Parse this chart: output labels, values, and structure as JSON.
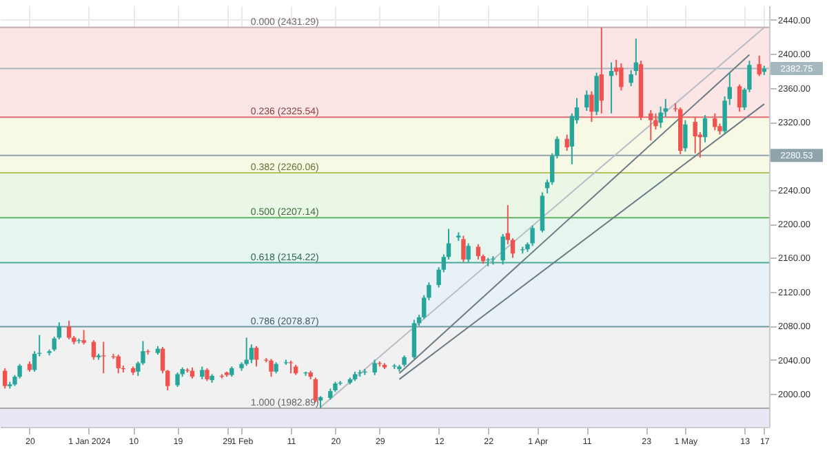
{
  "chart_data": {
    "type": "candlestick",
    "x": [
      "2023-12-15",
      "2023-12-16",
      "2023-12-17",
      "2023-12-18",
      "2023-12-20",
      "2023-12-21",
      "2023-12-22",
      "2023-12-24",
      "2023-12-25",
      "2023-12-26",
      "2023-12-28",
      "2023-12-29",
      "2023-12-30",
      "2023-12-31",
      "2024-01-02",
      "2024-01-03",
      "2024-01-04",
      "2024-01-06",
      "2024-01-07",
      "2024-01-08",
      "2024-01-10",
      "2024-01-11",
      "2024-01-12",
      "2024-01-13",
      "2024-01-15",
      "2024-01-16",
      "2024-01-17",
      "2024-01-19",
      "2024-01-20",
      "2024-01-21",
      "2024-01-22",
      "2024-01-24",
      "2024-01-25",
      "2024-01-26",
      "2024-01-28",
      "2024-01-29",
      "2024-01-30",
      "2024-02-01",
      "2024-02-02",
      "2024-02-03",
      "2024-02-04",
      "2024-02-06",
      "2024-02-07",
      "2024-02-08",
      "2024-02-10",
      "2024-02-11",
      "2024-02-12",
      "2024-02-14",
      "2024-02-15",
      "2024-02-16",
      "2024-02-17",
      "2024-02-19",
      "2024-02-20",
      "2024-02-21",
      "2024-02-23",
      "2024-02-24",
      "2024-02-25",
      "2024-02-26",
      "2024-02-28",
      "2024-02-29",
      "2024-03-01",
      "2024-03-03",
      "2024-03-04",
      "2024-03-05",
      "2024-03-07",
      "2024-03-08",
      "2024-03-09",
      "2024-03-10",
      "2024-03-12",
      "2024-03-13",
      "2024-03-14",
      "2024-03-16",
      "2024-03-17",
      "2024-03-18",
      "2024-03-20",
      "2024-03-21",
      "2024-03-22",
      "2024-03-23",
      "2024-03-25",
      "2024-03-26",
      "2024-03-27",
      "2024-03-29",
      "2024-03-30",
      "2024-03-31",
      "2024-04-02",
      "2024-04-03",
      "2024-04-04",
      "2024-04-05",
      "2024-04-07",
      "2024-04-08",
      "2024-04-09",
      "2024-04-11",
      "2024-04-12",
      "2024-04-13",
      "2024-04-14",
      "2024-04-16",
      "2024-04-17",
      "2024-04-18",
      "2024-04-20",
      "2024-04-21",
      "2024-04-22",
      "2024-04-24",
      "2024-04-25",
      "2024-04-26",
      "2024-04-27",
      "2024-04-29",
      "2024-04-30",
      "2024-05-01",
      "2024-05-03",
      "2024-05-04",
      "2024-05-05",
      "2024-05-07",
      "2024-05-08",
      "2024-05-09",
      "2024-05-10",
      "2024-05-12",
      "2024-05-13",
      "2024-05-14",
      "2024-05-16",
      "2024-05-17"
    ],
    "ohlc": [
      [
        2027,
        2030,
        2006,
        2009
      ],
      [
        2009,
        2014,
        2006,
        2011
      ],
      [
        2011,
        2022,
        2009,
        2020
      ],
      [
        2020,
        2035,
        2018,
        2033
      ],
      [
        2035,
        2038,
        2026,
        2028
      ],
      [
        2028,
        2050,
        2026,
        2047
      ],
      [
        2047,
        2069,
        2044,
        2048
      ],
      [
        2048,
        2052,
        2045,
        2050
      ],
      [
        2052,
        2067,
        2050,
        2065
      ],
      [
        2066,
        2084,
        2064,
        2079
      ],
      [
        2079,
        2086,
        2064,
        2066
      ],
      [
        2066,
        2068,
        2058,
        2061
      ],
      [
        2062,
        2065,
        2059,
        2063
      ],
      [
        2063,
        2075,
        2058,
        2060
      ],
      [
        2061,
        2063,
        2040,
        2043
      ],
      [
        2043,
        2047,
        2040,
        2045
      ],
      [
        2045,
        2061,
        2024,
        2044
      ],
      [
        2044,
        2047,
        2041,
        2043
      ],
      [
        2044,
        2046,
        2024,
        2030
      ],
      [
        2030,
        2033,
        2025,
        2029
      ],
      [
        2030,
        2032,
        2022,
        2025
      ],
      [
        2026,
        2038,
        2021,
        2036
      ],
      [
        2036,
        2062,
        2034,
        2050
      ],
      [
        2050,
        2052,
        2046,
        2049
      ],
      [
        2048,
        2056,
        2046,
        2053
      ],
      [
        2053,
        2055,
        2024,
        2027
      ],
      [
        2027,
        2028,
        2004,
        2009
      ],
      [
        2010,
        2025,
        2008,
        2023
      ],
      [
        2023,
        2031,
        2020,
        2029
      ],
      [
        2028,
        2030,
        2025,
        2027
      ],
      [
        2027,
        2031,
        2018,
        2020
      ],
      [
        2020,
        2032,
        2017,
        2028
      ],
      [
        2028,
        2030,
        2015,
        2017
      ],
      [
        2016,
        2023,
        2013,
        2021
      ],
      [
        2021,
        2023,
        2018,
        2020
      ],
      [
        2025,
        2026,
        2020,
        2022
      ],
      [
        2022,
        2032,
        2020,
        2030
      ],
      [
        2030,
        2037,
        2027,
        2035
      ],
      [
        2035,
        2066,
        2033,
        2040
      ],
      [
        2040,
        2058,
        2036,
        2054
      ],
      [
        2054,
        2056,
        2032,
        2040
      ],
      [
        2040,
        2042,
        2037,
        2039
      ],
      [
        2039,
        2041,
        2020,
        2026
      ],
      [
        2026,
        2037,
        2024,
        2035
      ],
      [
        2036,
        2040,
        2034,
        2037
      ],
      [
        2037,
        2039,
        2024,
        2036
      ],
      [
        2032,
        2034,
        2022,
        2024
      ],
      [
        2024,
        2026,
        2021,
        2025
      ],
      [
        2025,
        2027,
        2017,
        2020
      ],
      [
        2017,
        2019,
        1990,
        1992
      ],
      [
        1992,
        1997,
        1983,
        1996
      ],
      [
        1995,
        2006,
        1993,
        2003
      ],
      [
        2004,
        2014,
        2002,
        2012
      ],
      [
        2012,
        2015,
        2010,
        2013
      ],
      [
        2013,
        2019,
        2011,
        2017
      ],
      [
        2017,
        2026,
        2015,
        2023
      ],
      [
        2024,
        2028,
        2020,
        2025
      ],
      [
        2025,
        2029,
        2022,
        2026
      ],
      [
        2025,
        2040,
        2022,
        2036
      ],
      [
        2036,
        2038,
        2032,
        2035
      ],
      [
        2034,
        2036,
        2029,
        2031
      ],
      [
        2032,
        2035,
        2029,
        2033
      ],
      [
        2029,
        2034,
        2026,
        2032
      ],
      [
        2034,
        2045,
        2032,
        2043
      ],
      [
        2043,
        2087,
        2041,
        2083
      ],
      [
        2083,
        2093,
        2080,
        2090
      ],
      [
        2090,
        2116,
        2088,
        2113
      ],
      [
        2113,
        2131,
        2110,
        2128
      ],
      [
        2128,
        2149,
        2125,
        2146
      ],
      [
        2146,
        2164,
        2143,
        2161
      ],
      [
        2161,
        2194,
        2158,
        2177
      ],
      [
        2184,
        2190,
        2180,
        2186
      ],
      [
        2182,
        2186,
        2155,
        2158
      ],
      [
        2158,
        2177,
        2155,
        2174
      ],
      [
        2173,
        2176,
        2158,
        2162
      ],
      [
        2162,
        2164,
        2153,
        2156
      ],
      [
        2157,
        2160,
        2150,
        2158
      ],
      [
        2158,
        2162,
        2152,
        2159
      ],
      [
        2157,
        2188,
        2152,
        2185
      ],
      [
        2189,
        2222,
        2176,
        2181
      ],
      [
        2181,
        2183,
        2160,
        2165
      ],
      [
        2169,
        2173,
        2165,
        2170
      ],
      [
        2170,
        2178,
        2167,
        2176
      ],
      [
        2177,
        2198,
        2174,
        2195
      ],
      [
        2192,
        2237,
        2190,
        2233
      ],
      [
        2242,
        2252,
        2236,
        2249
      ],
      [
        2249,
        2283,
        2246,
        2280
      ],
      [
        2280,
        2303,
        2277,
        2300
      ],
      [
        2300,
        2305,
        2286,
        2290
      ],
      [
        2291,
        2330,
        2270,
        2327
      ],
      [
        2322,
        2348,
        2318,
        2337
      ],
      [
        2337,
        2357,
        2333,
        2352
      ],
      [
        2352,
        2356,
        2320,
        2332
      ],
      [
        2332,
        2378,
        2328,
        2374
      ],
      [
        2376,
        2431,
        2330,
        2345
      ],
      [
        2374,
        2390,
        2330,
        2380
      ],
      [
        2384,
        2393,
        2375,
        2379
      ],
      [
        2384,
        2389,
        2357,
        2361
      ],
      [
        2366,
        2381,
        2362,
        2376
      ],
      [
        2380,
        2418,
        2375,
        2390
      ],
      [
        2388,
        2392,
        2322,
        2325
      ],
      [
        2330,
        2334,
        2298,
        2322
      ],
      [
        2322,
        2330,
        2311,
        2315
      ],
      [
        2319,
        2338,
        2313,
        2331
      ],
      [
        2332,
        2347,
        2326,
        2336
      ],
      [
        2336,
        2342,
        2332,
        2335
      ],
      [
        2335,
        2337,
        2282,
        2286
      ],
      [
        2289,
        2322,
        2285,
        2317
      ],
      [
        2320,
        2325,
        2283,
        2303
      ],
      [
        2305,
        2308,
        2278,
        2302
      ],
      [
        2302,
        2328,
        2296,
        2324
      ],
      [
        2324,
        2330,
        2310,
        2314
      ],
      [
        2315,
        2318,
        2305,
        2309
      ],
      [
        2309,
        2350,
        2306,
        2345
      ],
      [
        2347,
        2378,
        2340,
        2361
      ],
      [
        2362,
        2364,
        2332,
        2337
      ],
      [
        2337,
        2360,
        2334,
        2358
      ],
      [
        2358,
        2392,
        2355,
        2387
      ],
      [
        2388,
        2398,
        2374,
        2376
      ],
      [
        2379,
        2386,
        2375,
        2382.75
      ]
    ],
    "colors": [
      "#ef5350",
      "#26a69a",
      "#26a69a",
      "#26a69a",
      "#ef5350",
      "#26a69a",
      "#26a69a",
      "#26a69a",
      "#26a69a",
      "#26a69a",
      "#ef5350",
      "#ef5350",
      "#26a69a",
      "#ef5350",
      "#ef5350",
      "#26a69a",
      "#ef5350",
      "#ef5350",
      "#ef5350",
      "#ef5350",
      "#ef5350",
      "#26a69a",
      "#26a69a",
      "#ef5350",
      "#26a69a",
      "#ef5350",
      "#ef5350",
      "#26a69a",
      "#26a69a",
      "#ef5350",
      "#ef5350",
      "#26a69a",
      "#ef5350",
      "#26a69a",
      "#ef5350",
      "#ef5350",
      "#26a69a",
      "#26a69a",
      "#26a69a",
      "#26a69a",
      "#ef5350",
      "#ef5350",
      "#ef5350",
      "#26a69a",
      "#26a69a",
      "#ef5350",
      "#ef5350",
      "#26a69a",
      "#ef5350",
      "#ef5350",
      "#26a69a",
      "#26a69a",
      "#26a69a",
      "#26a69a",
      "#26a69a",
      "#26a69a",
      "#26a69a",
      "#26a69a",
      "#26a69a",
      "#ef5350",
      "#ef5350",
      "#26a69a",
      "#26a69a",
      "#26a69a",
      "#26a69a",
      "#26a69a",
      "#26a69a",
      "#26a69a",
      "#26a69a",
      "#26a69a",
      "#26a69a",
      "#26a69a",
      "#ef5350",
      "#26a69a",
      "#ef5350",
      "#ef5350",
      "#26a69a",
      "#26a69a",
      "#26a69a",
      "#ef5350",
      "#ef5350",
      "#26a69a",
      "#26a69a",
      "#26a69a",
      "#26a69a",
      "#26a69a",
      "#26a69a",
      "#26a69a",
      "#ef5350",
      "#26a69a",
      "#26a69a",
      "#26a69a",
      "#ef5350",
      "#26a69a",
      "#ef5350",
      "#26a69a",
      "#ef5350",
      "#ef5350",
      "#26a69a",
      "#26a69a",
      "#ef5350",
      "#ef5350",
      "#ef5350",
      "#26a69a",
      "#26a69a",
      "#ef5350",
      "#ef5350",
      "#26a69a",
      "#ef5350",
      "#ef5350",
      "#26a69a",
      "#ef5350",
      "#ef5350",
      "#26a69a",
      "#26a69a",
      "#ef5350",
      "#26a69a",
      "#26a69a",
      "#ef5350",
      "#26a69a"
    ],
    "series": [
      {
        "type": "line",
        "color": "#b8bcc6",
        "x": [
          "2024-02-17",
          "2024-05-17"
        ],
        "values": [
          1984,
          2431
        ]
      },
      {
        "type": "line",
        "color": "#6b7a85",
        "x": [
          "2024-03-04",
          "2024-05-14"
        ],
        "values": [
          2024,
          2399
        ]
      },
      {
        "type": "line",
        "color": "#6b7a85",
        "x": [
          "2024-03-04",
          "2024-05-17"
        ],
        "values": [
          2017,
          2341
        ]
      }
    ],
    "ref_lines": [
      {
        "axis": "y",
        "value": 2431.29,
        "label": "0.000 (2431.29)",
        "color": "#c2aeae"
      },
      {
        "axis": "y",
        "value": 2325.54,
        "label": "0.236 (2325.54)",
        "color": "#e06c6c"
      },
      {
        "axis": "y",
        "value": 2260.06,
        "label": "0.382 (2260.06)",
        "color": "#b3c25a"
      },
      {
        "axis": "y",
        "value": 2207.14,
        "label": "0.500 (2207.14)",
        "color": "#62b560"
      },
      {
        "axis": "y",
        "value": 2154.22,
        "label": "0.618 (2154.22)",
        "color": "#4aa99a"
      },
      {
        "axis": "y",
        "value": 2078.87,
        "label": "0.786 (2078.87)",
        "color": "#6f97a3"
      },
      {
        "axis": "y",
        "value": 1982.89,
        "label": "1.000 (1982.89)",
        "color": "#a6a6a6"
      },
      {
        "axis": "y",
        "value": 2382.75,
        "label": "2382.75",
        "color": "#a5b8bf"
      },
      {
        "axis": "y",
        "value": 2280.53,
        "label": "2280.53",
        "color": "#8ea4ad"
      }
    ],
    "bands": [
      {
        "axis": "y",
        "from": 2325.54,
        "to": 2431.29,
        "color": "#fbe5e5"
      },
      {
        "axis": "y",
        "from": 2260.06,
        "to": 2325.54,
        "color": "#f7f9e4"
      },
      {
        "axis": "y",
        "from": 2207.14,
        "to": 2260.06,
        "color": "#ebf7e6"
      },
      {
        "axis": "y",
        "from": 2154.22,
        "to": 2207.14,
        "color": "#e6f6ef"
      },
      {
        "axis": "y",
        "from": 2078.87,
        "to": 2154.22,
        "color": "#e8f1f8"
      },
      {
        "axis": "y",
        "from": 1982.89,
        "to": 2078.87,
        "color": "#f1f1f1"
      },
      {
        "axis": "y",
        "from": 1961,
        "to": 1982.89,
        "color": "#e9e7f6"
      }
    ],
    "xlim": [
      "2023-12-14",
      "2024-05-18"
    ],
    "xticks": [
      {
        "value": "2023-12-20",
        "label": "20"
      },
      {
        "value": "2024-01-01",
        "label": "1 Jan 2024"
      },
      {
        "value": "2024-01-10",
        "label": "10"
      },
      {
        "value": "2024-01-19",
        "label": "19"
      },
      {
        "value": "2024-01-29",
        "label": "29"
      },
      {
        "value": "2024-02-01",
        "label": "1 Feb"
      },
      {
        "value": "2024-02-11",
        "label": "11"
      },
      {
        "value": "2024-02-20",
        "label": "20"
      },
      {
        "value": "2024-02-29",
        "label": "29"
      },
      {
        "value": "2024-03-12",
        "label": "12"
      },
      {
        "value": "2024-03-22",
        "label": "22"
      },
      {
        "value": "2024-04-01",
        "label": "1 Apr"
      },
      {
        "value": "2024-04-11",
        "label": "11"
      },
      {
        "value": "2024-04-23",
        "label": "23"
      },
      {
        "value": "2024-05-01",
        "label": "1 May"
      },
      {
        "value": "2024-05-13",
        "label": "13"
      },
      {
        "value": "2024-05-17",
        "label": "17"
      }
    ],
    "ylim": [
      1961,
      2457
    ],
    "yticks": [
      {
        "value": 2000,
        "label": "2000.00"
      },
      {
        "value": 2040,
        "label": "2040.00"
      },
      {
        "value": 2080,
        "label": "2080.00"
      },
      {
        "value": 2120,
        "label": "2120.00"
      },
      {
        "value": 2160,
        "label": "2160.00"
      },
      {
        "value": 2200,
        "label": "2200.00"
      },
      {
        "value": 2240,
        "label": "2240.00"
      },
      {
        "value": 2280,
        "label": null
      },
      {
        "value": 2320,
        "label": "2320.00"
      },
      {
        "value": 2360,
        "label": "2360.00"
      },
      {
        "value": 2400,
        "label": "2400.00"
      },
      {
        "value": 2440,
        "label": "2440.00"
      }
    ],
    "grid": true
  }
}
